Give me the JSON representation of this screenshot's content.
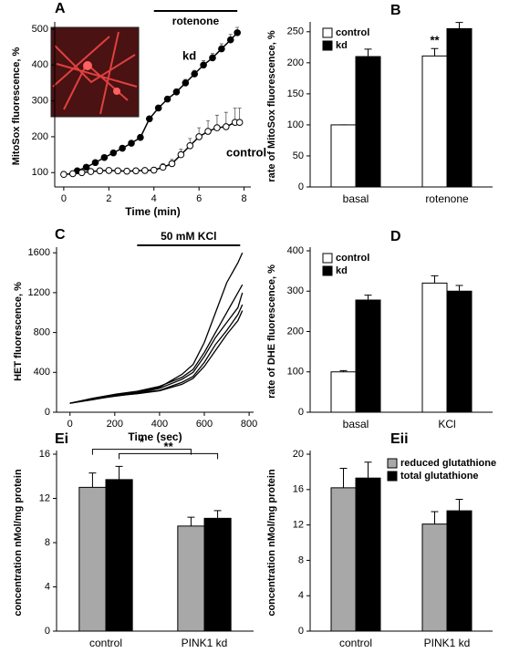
{
  "chart_data": [
    {
      "type": "line",
      "panel": "A",
      "xlabel": "Time (min)",
      "ylabel": "MitoSox fluorescence, %",
      "xlim": [
        -0.4,
        8.3
      ],
      "xticks": [
        0,
        2,
        4,
        6,
        8
      ],
      "ylim": [
        60,
        510
      ],
      "yticks": [
        100,
        200,
        300,
        400,
        500
      ],
      "legend": "inline",
      "period": {
        "label": "rotenone",
        "start": 4,
        "end": 7.7
      },
      "series": [
        {
          "name": "kd",
          "color": "#000000",
          "marker_fill": "#000000",
          "x": [
            0.6,
            1.0,
            1.4,
            1.8,
            2.2,
            2.6,
            3.0,
            3.4,
            3.8,
            4.2,
            4.6,
            5.0,
            5.4,
            5.8,
            6.2,
            6.6,
            7.0,
            7.4,
            7.7
          ],
          "values": [
            105,
            115,
            128,
            142,
            155,
            168,
            182,
            198,
            250,
            280,
            305,
            325,
            350,
            375,
            400,
            420,
            445,
            470,
            490
          ],
          "errors": [
            3,
            3,
            3,
            4,
            4,
            4,
            5,
            5,
            6,
            6,
            8,
            8,
            10,
            10,
            12,
            12,
            14,
            15,
            15
          ]
        },
        {
          "name": "control",
          "color": "#000000",
          "marker_fill": "#ffffff",
          "x": [
            0,
            0.4,
            0.8,
            1.2,
            1.6,
            2.0,
            2.4,
            2.8,
            3.2,
            3.6,
            4.0,
            4.4,
            4.8,
            5.2,
            5.6,
            6.0,
            6.4,
            6.8,
            7.2,
            7.6,
            7.8
          ],
          "values": [
            95,
            97,
            100,
            103,
            105,
            106,
            105,
            104,
            105,
            106,
            107,
            115,
            125,
            150,
            175,
            200,
            215,
            225,
            228,
            240,
            240
          ],
          "errors": [
            3,
            3,
            3,
            4,
            4,
            4,
            4,
            5,
            5,
            5,
            8,
            10,
            12,
            15,
            20,
            25,
            30,
            35,
            40,
            40,
            40
          ]
        }
      ]
    },
    {
      "type": "bar",
      "panel": "B",
      "ylabel": "rate of MitoSox fluorescence, %",
      "categories": [
        "basal",
        "rotenone"
      ],
      "ylim": [
        0,
        260
      ],
      "yticks": [
        0,
        50,
        100,
        150,
        200,
        250
      ],
      "legend": "upper left",
      "annotations": [
        "**"
      ],
      "series": [
        {
          "name": "control",
          "color": "#ffffff",
          "values": [
            100,
            211
          ],
          "errors": [
            0,
            12
          ]
        },
        {
          "name": "kd",
          "color": "#000000",
          "values": [
            210,
            255
          ],
          "errors": [
            12,
            10
          ]
        }
      ]
    },
    {
      "type": "line",
      "panel": "C",
      "xlabel": "Time (sec)",
      "ylabel": "HET fluorescence, %",
      "xlim": [
        -60,
        820
      ],
      "xticks": [
        0,
        200,
        400,
        600,
        800
      ],
      "ylim": [
        0,
        1620
      ],
      "yticks": [
        0,
        400,
        800,
        1200,
        1600
      ],
      "period": {
        "label": "50 mM KCl",
        "start": 300,
        "end": 760
      },
      "x": [
        0,
        100,
        200,
        300,
        400,
        500,
        550,
        600,
        650,
        700,
        750,
        770
      ],
      "series": [
        {
          "color": "#000000",
          "values": [
            90,
            130,
            170,
            200,
            250,
            380,
            480,
            700,
            1000,
            1300,
            1500,
            1600
          ]
        },
        {
          "color": "#000000",
          "values": [
            90,
            140,
            180,
            210,
            260,
            350,
            430,
            600,
            800,
            1000,
            1200,
            1280
          ]
        },
        {
          "color": "#000000",
          "values": [
            90,
            135,
            175,
            190,
            240,
            330,
            400,
            560,
            750,
            900,
            1050,
            1200
          ]
        },
        {
          "color": "#000000",
          "values": [
            90,
            130,
            160,
            190,
            220,
            300,
            360,
            500,
            680,
            820,
            980,
            1080
          ]
        },
        {
          "color": "#000000",
          "values": [
            90,
            125,
            165,
            185,
            215,
            280,
            340,
            460,
            620,
            780,
            920,
            1020
          ]
        }
      ]
    },
    {
      "type": "bar",
      "panel": "D",
      "ylabel": "rate of DHE fluorescence, %",
      "categories": [
        "basal",
        "KCl"
      ],
      "ylim": [
        0,
        400
      ],
      "yticks": [
        0,
        100,
        200,
        300,
        400
      ],
      "legend": "upper left",
      "series": [
        {
          "name": "control",
          "color": "#ffffff",
          "values": [
            100,
            320
          ],
          "errors": [
            3,
            18
          ]
        },
        {
          "name": "kd",
          "color": "#000000",
          "values": [
            278,
            300
          ],
          "errors": [
            12,
            14
          ]
        }
      ]
    },
    {
      "type": "bar",
      "panel": "Ei",
      "ylabel": "concentration nMol/mg protein",
      "categories": [
        "control",
        "PINK1 kd"
      ],
      "ylim": [
        0,
        16
      ],
      "yticks": [
        0,
        4,
        8,
        12,
        16
      ],
      "annotations": [
        "*",
        "**"
      ],
      "series": [
        {
          "color": "#a8a8a8",
          "values": [
            13,
            9.5
          ],
          "errors": [
            1.3,
            0.8
          ]
        },
        {
          "color": "#000000",
          "values": [
            13.7,
            10.2
          ],
          "errors": [
            1.2,
            0.7
          ]
        }
      ]
    },
    {
      "type": "bar",
      "panel": "Eii",
      "ylabel": "concentration nMol/mg protein",
      "categories": [
        "control",
        "PINK1 kd"
      ],
      "ylim": [
        0,
        20
      ],
      "yticks": [
        0,
        4,
        8,
        12,
        16,
        20
      ],
      "legend": "top",
      "series": [
        {
          "name": "reduced glutathione",
          "color": "#a8a8a8",
          "values": [
            16.2,
            12.1
          ],
          "errors": [
            2.2,
            1.4
          ]
        },
        {
          "name": "total glutathione",
          "color": "#000000",
          "values": [
            17.3,
            13.6
          ],
          "errors": [
            1.8,
            1.3
          ]
        }
      ]
    }
  ]
}
